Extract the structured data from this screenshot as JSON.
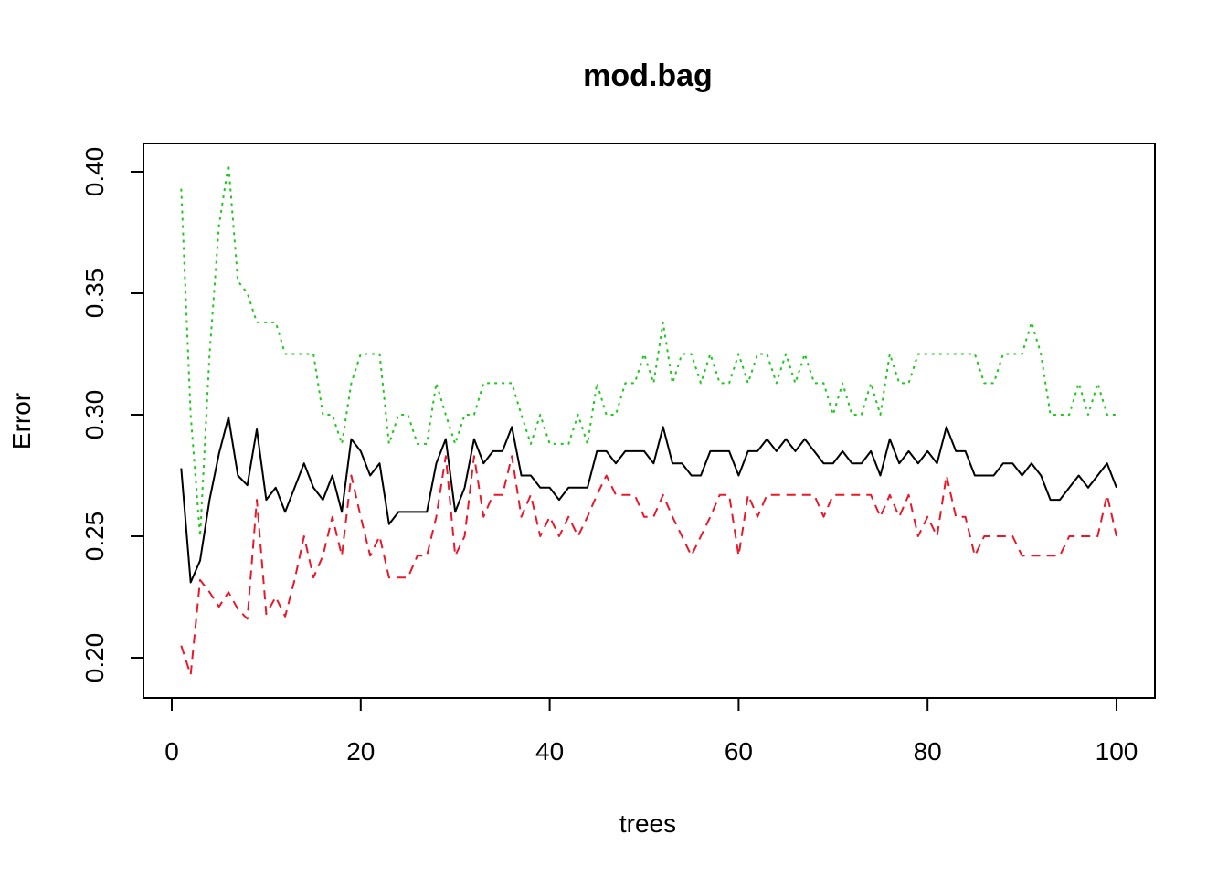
{
  "chart_data": {
    "type": "line",
    "title": "mod.bag",
    "xlabel": "trees",
    "ylabel": "Error",
    "xlim": [
      0,
      100
    ],
    "ylim": [
      0.2,
      0.4
    ],
    "x_ticks": [
      0,
      20,
      40,
      60,
      80,
      100
    ],
    "x_tick_labels": [
      "0",
      "20",
      "40",
      "60",
      "80",
      "100"
    ],
    "y_ticks": [
      0.2,
      0.25,
      0.3,
      0.35,
      0.4
    ],
    "y_tick_labels": [
      "0.20",
      "0.25",
      "0.30",
      "0.35",
      "0.40"
    ],
    "grid": false,
    "legend": "none",
    "x": [
      1,
      2,
      3,
      4,
      5,
      6,
      7,
      8,
      9,
      10,
      11,
      12,
      13,
      14,
      15,
      16,
      17,
      18,
      19,
      20,
      21,
      22,
      23,
      24,
      25,
      26,
      27,
      28,
      29,
      30,
      31,
      32,
      33,
      34,
      35,
      36,
      37,
      38,
      39,
      40,
      41,
      42,
      43,
      44,
      45,
      46,
      47,
      48,
      49,
      50,
      51,
      52,
      53,
      54,
      55,
      56,
      57,
      58,
      59,
      60,
      61,
      62,
      63,
      64,
      65,
      66,
      67,
      68,
      69,
      70,
      71,
      72,
      73,
      74,
      75,
      76,
      77,
      78,
      79,
      80,
      81,
      82,
      83,
      84,
      85,
      86,
      87,
      88,
      89,
      90,
      91,
      92,
      93,
      94,
      95,
      96,
      97,
      98,
      99,
      100
    ],
    "series": [
      {
        "color": "#000000",
        "dash": "solid",
        "values": [
          0.278,
          0.231,
          0.24,
          0.265,
          0.284,
          0.299,
          0.275,
          0.271,
          0.294,
          0.265,
          0.27,
          0.26,
          0.27,
          0.28,
          0.27,
          0.265,
          0.275,
          0.26,
          0.29,
          0.285,
          0.275,
          0.28,
          0.255,
          0.26,
          0.26,
          0.26,
          0.26,
          0.28,
          0.29,
          0.26,
          0.27,
          0.29,
          0.28,
          0.285,
          0.285,
          0.295,
          0.275,
          0.275,
          0.27,
          0.27,
          0.265,
          0.27,
          0.27,
          0.27,
          0.285,
          0.285,
          0.28,
          0.285,
          0.285,
          0.285,
          0.28,
          0.295,
          0.28,
          0.28,
          0.275,
          0.275,
          0.285,
          0.285,
          0.285,
          0.275,
          0.285,
          0.285,
          0.29,
          0.285,
          0.29,
          0.285,
          0.29,
          0.285,
          0.28,
          0.28,
          0.285,
          0.28,
          0.28,
          0.285,
          0.275,
          0.29,
          0.28,
          0.285,
          0.28,
          0.285,
          0.28,
          0.295,
          0.285,
          0.285,
          0.275,
          0.275,
          0.275,
          0.28,
          0.28,
          0.275,
          0.28,
          0.275,
          0.265,
          0.265,
          0.27,
          0.275,
          0.27,
          0.275,
          0.28,
          0.27
        ]
      },
      {
        "color": "#e8182b",
        "dash": "dashed",
        "values": [
          0.205,
          0.193,
          0.232,
          0.227,
          0.221,
          0.227,
          0.22,
          0.216,
          0.265,
          0.218,
          0.225,
          0.217,
          0.232,
          0.25,
          0.233,
          0.242,
          0.258,
          0.242,
          0.275,
          0.258,
          0.242,
          0.25,
          0.233,
          0.233,
          0.233,
          0.242,
          0.242,
          0.258,
          0.283,
          0.242,
          0.25,
          0.283,
          0.258,
          0.267,
          0.267,
          0.283,
          0.258,
          0.267,
          0.25,
          0.258,
          0.25,
          0.258,
          0.25,
          0.258,
          0.267,
          0.275,
          0.267,
          0.267,
          0.267,
          0.258,
          0.258,
          0.267,
          0.258,
          0.25,
          0.242,
          0.25,
          0.258,
          0.267,
          0.267,
          0.242,
          0.267,
          0.258,
          0.267,
          0.267,
          0.267,
          0.267,
          0.267,
          0.267,
          0.258,
          0.267,
          0.267,
          0.267,
          0.267,
          0.267,
          0.258,
          0.267,
          0.258,
          0.267,
          0.25,
          0.258,
          0.25,
          0.275,
          0.258,
          0.258,
          0.242,
          0.25,
          0.25,
          0.25,
          0.25,
          0.242,
          0.242,
          0.242,
          0.242,
          0.242,
          0.25,
          0.25,
          0.25,
          0.25,
          0.267,
          0.25
        ]
      },
      {
        "color": "#1ec81e",
        "dash": "dotted",
        "values": [
          0.393,
          0.3,
          0.25,
          0.325,
          0.378,
          0.403,
          0.355,
          0.35,
          0.338,
          0.338,
          0.338,
          0.325,
          0.325,
          0.325,
          0.325,
          0.3,
          0.3,
          0.288,
          0.313,
          0.325,
          0.325,
          0.325,
          0.288,
          0.3,
          0.3,
          0.288,
          0.288,
          0.313,
          0.3,
          0.288,
          0.3,
          0.3,
          0.313,
          0.313,
          0.313,
          0.313,
          0.3,
          0.288,
          0.3,
          0.288,
          0.288,
          0.288,
          0.3,
          0.288,
          0.313,
          0.3,
          0.3,
          0.313,
          0.313,
          0.325,
          0.313,
          0.338,
          0.313,
          0.325,
          0.325,
          0.313,
          0.325,
          0.313,
          0.313,
          0.325,
          0.313,
          0.325,
          0.325,
          0.313,
          0.325,
          0.313,
          0.325,
          0.313,
          0.313,
          0.3,
          0.313,
          0.3,
          0.3,
          0.313,
          0.3,
          0.325,
          0.313,
          0.313,
          0.325,
          0.325,
          0.325,
          0.325,
          0.325,
          0.325,
          0.325,
          0.313,
          0.313,
          0.325,
          0.325,
          0.325,
          0.338,
          0.325,
          0.3,
          0.3,
          0.3,
          0.313,
          0.3,
          0.313,
          0.3,
          0.3
        ]
      }
    ]
  }
}
